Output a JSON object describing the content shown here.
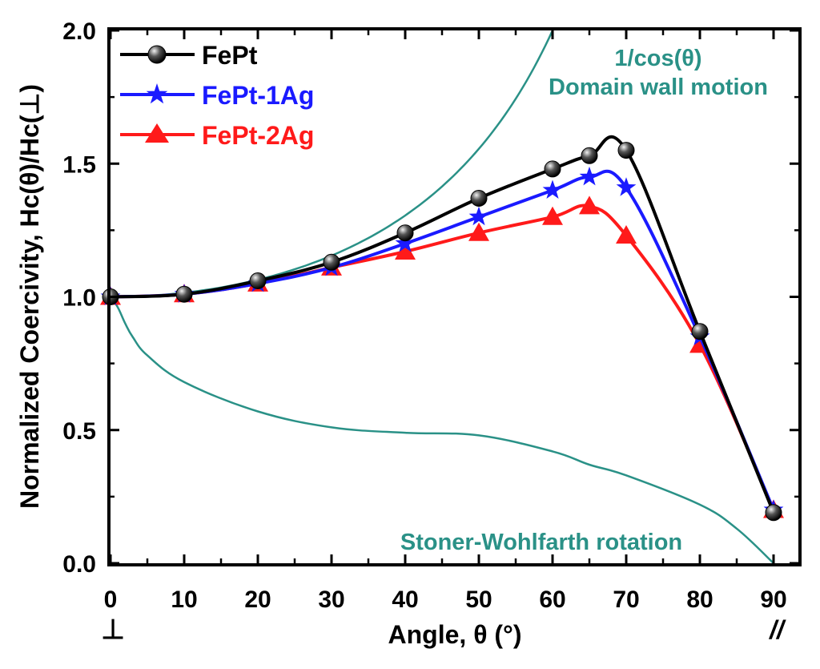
{
  "chart_data": {
    "type": "line",
    "title": "",
    "xlabel": "Angle, θ (°)",
    "ylabel": "Normalized Coercivity, Hc(θ)/Hc(⊥)",
    "xlim": [
      0,
      95
    ],
    "ylim": [
      0,
      2.0
    ],
    "x_ticks": [
      0,
      10,
      20,
      30,
      40,
      50,
      60,
      70,
      80,
      90
    ],
    "x_tick_labels": [
      "0",
      "10",
      "20",
      "30",
      "40",
      "50",
      "60",
      "70",
      "80",
      "90"
    ],
    "y_ticks": [
      0,
      0.5,
      1.0,
      1.5,
      2.0
    ],
    "y_tick_labels": [
      "0.0",
      "0.5",
      "1.0",
      "1.5",
      "2.0"
    ],
    "x_extra_labels": {
      "left": "⊥",
      "right": "//"
    },
    "legend_position": "top-left",
    "series": [
      {
        "name": "FePt",
        "color": "#000000",
        "marker": "sphere",
        "x": [
          0,
          10,
          20,
          30,
          40,
          50,
          60,
          65,
          70,
          80,
          90
        ],
        "values": [
          1.0,
          1.01,
          1.06,
          1.13,
          1.24,
          1.37,
          1.48,
          1.53,
          1.55,
          0.87,
          0.19
        ]
      },
      {
        "name": "FePt-1Ag",
        "color": "#1a1aff",
        "marker": "star",
        "x": [
          0,
          10,
          20,
          30,
          40,
          50,
          60,
          65,
          70,
          80,
          90
        ],
        "values": [
          1.0,
          1.01,
          1.05,
          1.11,
          1.2,
          1.3,
          1.4,
          1.45,
          1.41,
          0.85,
          0.2
        ]
      },
      {
        "name": "FePt-2Ag",
        "color": "#ff1a1a",
        "marker": "triangle",
        "x": [
          0,
          10,
          20,
          30,
          40,
          50,
          60,
          65,
          70,
          80,
          90
        ],
        "values": [
          1.0,
          1.01,
          1.05,
          1.11,
          1.17,
          1.24,
          1.3,
          1.34,
          1.23,
          0.82,
          0.2
        ]
      }
    ],
    "reference_curves": [
      {
        "name": "1/cos(θ) Domain wall motion",
        "color": "#2a9187",
        "formula": "1/cos(theta)"
      },
      {
        "name": "Stoner-Wohlfarth rotation",
        "color": "#2a9187",
        "x": [
          0,
          1,
          2,
          3,
          5,
          10,
          20,
          30,
          40,
          50,
          60,
          65,
          70,
          80,
          85,
          90
        ],
        "values": [
          1.0,
          0.96,
          0.9,
          0.85,
          0.78,
          0.68,
          0.57,
          0.51,
          0.49,
          0.48,
          0.42,
          0.37,
          0.33,
          0.22,
          0.13,
          0.0
        ]
      }
    ],
    "annotations": [
      {
        "id": "cos-line1",
        "text": "1/cos(θ)"
      },
      {
        "id": "cos-line2",
        "text": "Domain wall motion"
      },
      {
        "id": "sw",
        "text": "Stoner-Wohlfarth rotation"
      }
    ]
  }
}
